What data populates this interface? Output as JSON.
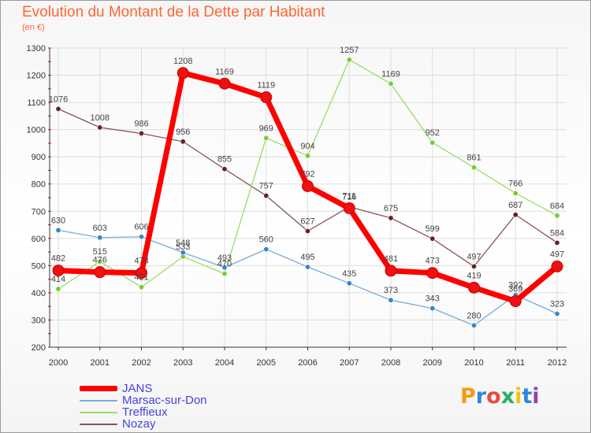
{
  "title": "Evolution du Montant de la Dette par Habitant",
  "subtitle": "(en €)",
  "brand": {
    "text": "Proxiti",
    "letter_colors": [
      "#f39c12",
      "#2e86de",
      "#e74c3c",
      "#27ae60",
      "#f1c40f",
      "#2e86de",
      "#8e44ad"
    ]
  },
  "colors": {
    "title": "#ff6633",
    "legend_text": "#4444dd",
    "axis": "#333333",
    "grid": "#dddddd"
  },
  "chart_data": {
    "type": "line",
    "title": "Evolution du Montant de la Dette par Habitant",
    "subtitle": "(en €)",
    "xlabel": "",
    "ylabel": "",
    "x": [
      "2000",
      "2001",
      "2002",
      "2003",
      "2004",
      "2005",
      "2006",
      "2007",
      "2008",
      "2009",
      "2010",
      "2011",
      "2012"
    ],
    "ylim": [
      200,
      1300
    ],
    "yticks": [
      200,
      300,
      400,
      500,
      600,
      700,
      800,
      900,
      1000,
      1100,
      1200,
      1300
    ],
    "grid": true,
    "legend_position": "bottom-left",
    "series": [
      {
        "name": "JANS",
        "values": [
          482,
          476,
          473,
          1208,
          1169,
          1119,
          792,
          711,
          481,
          473,
          419,
          369,
          497
        ],
        "labels": [
          "482",
          "476",
          "473",
          "1208",
          "1169",
          "1119",
          "792",
          "711",
          "481",
          "473",
          "419",
          "369",
          "497"
        ],
        "color": "#ff0000",
        "marker": "#ee1111",
        "width": 7,
        "radius": 7
      },
      {
        "name": "Marsac-sur-Don",
        "values": [
          630,
          603,
          606,
          548,
          493,
          560,
          495,
          435,
          373,
          343,
          280,
          392,
          323
        ],
        "labels": [
          "630",
          "603",
          "606",
          "548",
          "493",
          "560",
          "495",
          "435",
          "373",
          "343",
          "280",
          "392",
          "323"
        ],
        "color": "#77aadd",
        "marker": "#3388cc",
        "width": 1.3,
        "radius": 3.2
      },
      {
        "name": "Treffieux",
        "values": [
          414,
          515,
          421,
          533,
          470,
          969,
          904,
          1257,
          1169,
          952,
          861,
          766,
          684
        ],
        "labels": [
          "414",
          "515",
          "421",
          "533",
          "470",
          "969",
          "904",
          "1257",
          "1169",
          "952",
          "861",
          "766",
          "684"
        ],
        "color": "#99dd66",
        "marker": "#77cc33",
        "width": 1.3,
        "radius": 3.2
      },
      {
        "name": "Nozay",
        "values": [
          1076,
          1008,
          986,
          956,
          855,
          757,
          627,
          716,
          675,
          599,
          497,
          687,
          584
        ],
        "labels": [
          "1076",
          "1008",
          "986",
          "956",
          "855",
          "757",
          "627",
          "716",
          "675",
          "599",
          "497",
          "687",
          "584"
        ],
        "color": "#885555",
        "marker": "#662222",
        "width": 1.3,
        "radius": 3.2
      }
    ]
  }
}
